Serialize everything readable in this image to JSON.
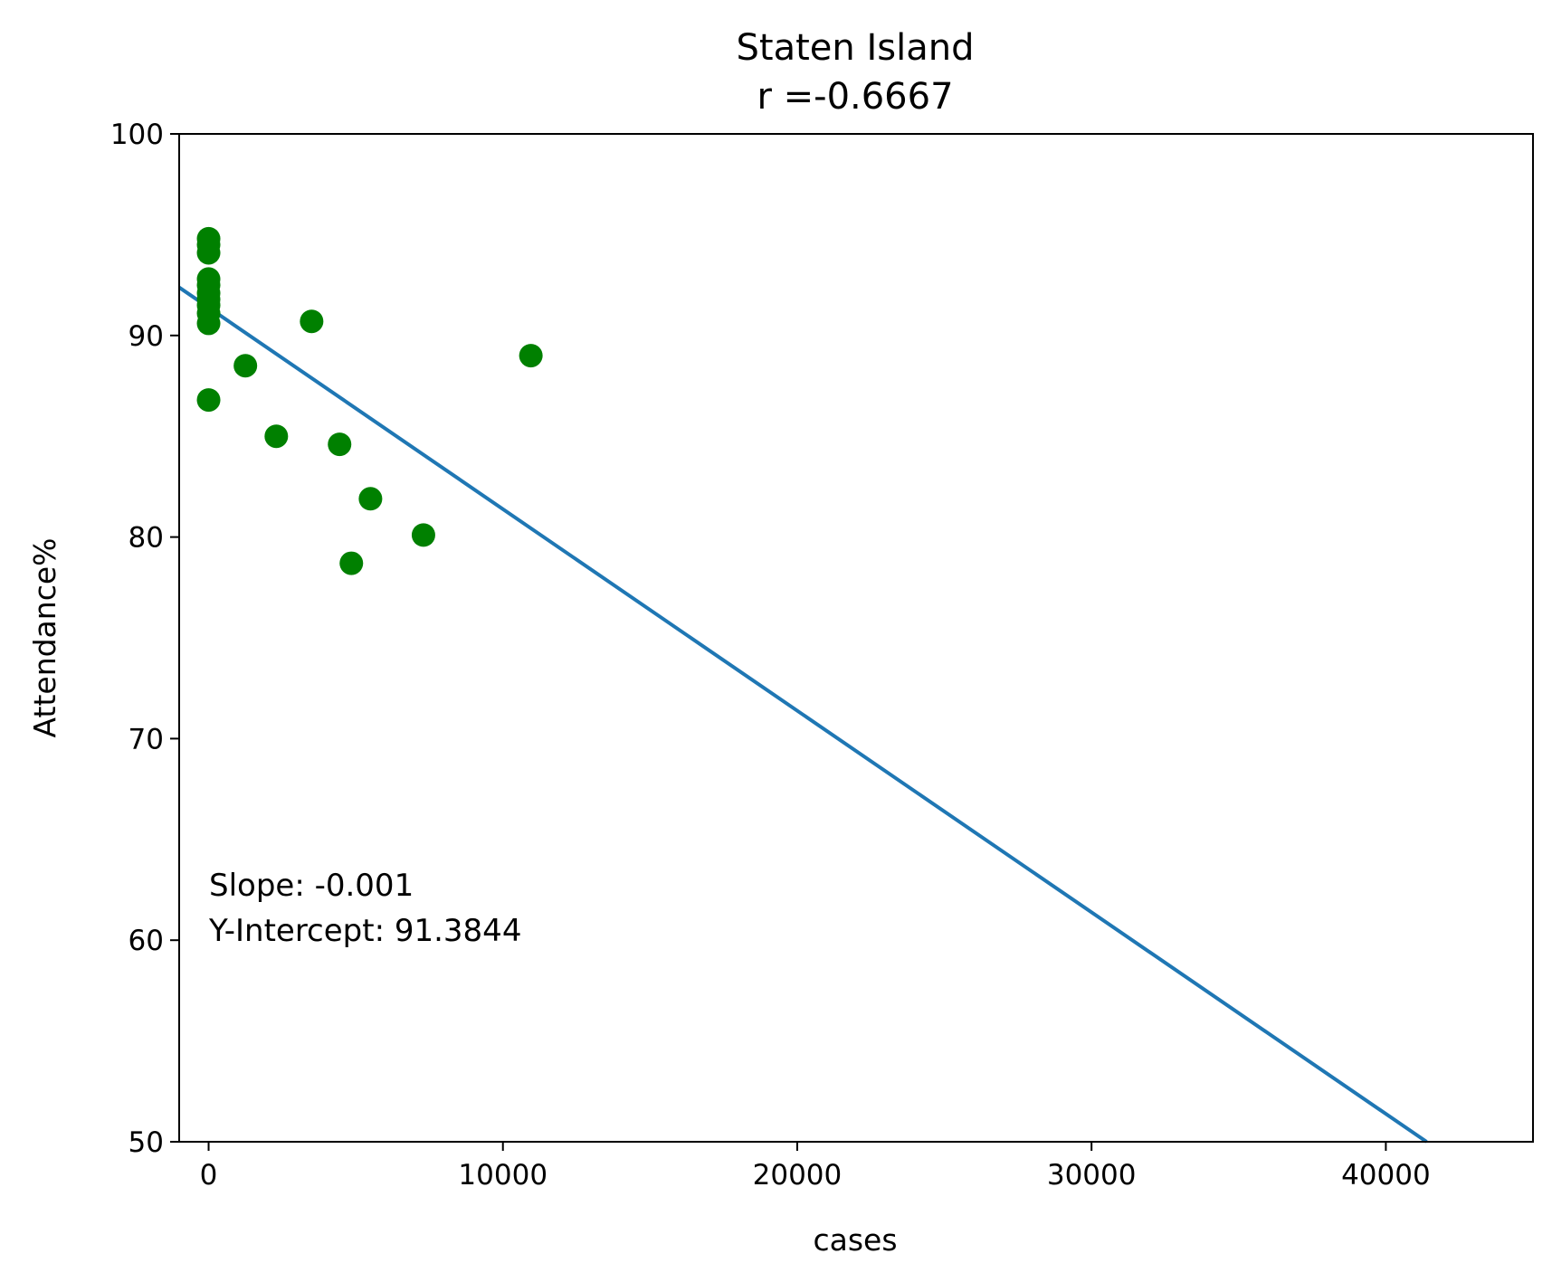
{
  "chart_data": {
    "type": "scatter",
    "title": "Staten Island",
    "subtitle": "r =-0.6667",
    "xlabel": "cases",
    "ylabel": "Attendance%",
    "xlim": [
      -1000,
      45000
    ],
    "ylim": [
      50,
      100
    ],
    "x_ticks": [
      0,
      10000,
      20000,
      30000,
      40000
    ],
    "y_ticks": [
      50,
      60,
      70,
      80,
      90,
      100
    ],
    "grid": false,
    "legend": "none",
    "points": [
      {
        "x": 0,
        "y": 94.8
      },
      {
        "x": 0,
        "y": 94.5
      },
      {
        "x": 0,
        "y": 94.1
      },
      {
        "x": 0,
        "y": 92.8
      },
      {
        "x": 0,
        "y": 92.5
      },
      {
        "x": 0,
        "y": 92.1
      },
      {
        "x": 0,
        "y": 91.8
      },
      {
        "x": 0,
        "y": 91.5
      },
      {
        "x": 0,
        "y": 91.1
      },
      {
        "x": 0,
        "y": 90.6
      },
      {
        "x": 0,
        "y": 86.8
      },
      {
        "x": 1250,
        "y": 88.5
      },
      {
        "x": 2300,
        "y": 85.0
      },
      {
        "x": 3500,
        "y": 90.7
      },
      {
        "x": 4450,
        "y": 84.6
      },
      {
        "x": 4850,
        "y": 78.7
      },
      {
        "x": 5500,
        "y": 81.9
      },
      {
        "x": 7300,
        "y": 80.1
      },
      {
        "x": 10950,
        "y": 89.0
      }
    ],
    "regression": {
      "slope": -0.001,
      "intercept": 91.3844
    },
    "annotations": [
      "Slope: -0.001",
      "Y-Intercept: 91.3844"
    ],
    "colors": {
      "points": "#008000",
      "line": "#1f77b4",
      "axes": "#000000"
    }
  }
}
